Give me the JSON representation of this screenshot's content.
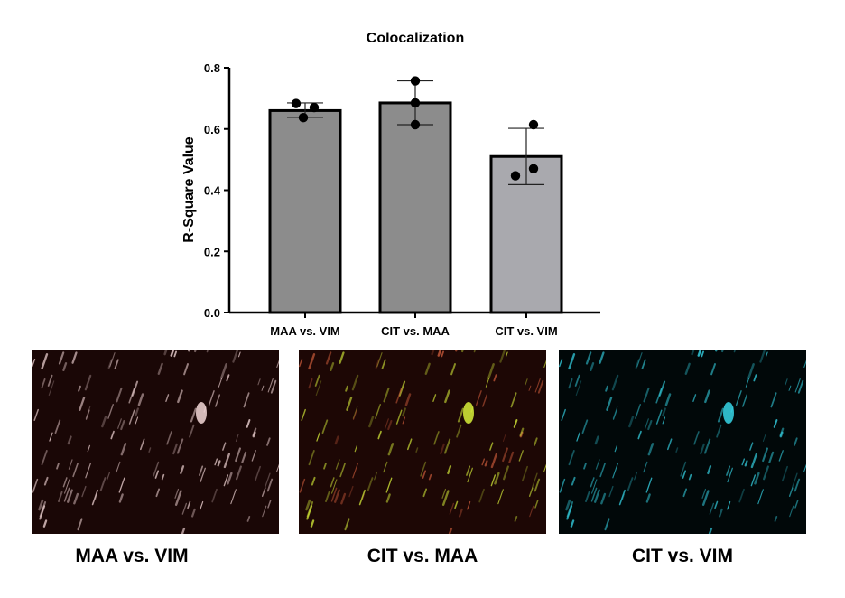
{
  "chart_data": {
    "type": "bar",
    "title": "Colocalization",
    "ylabel": "R-Square Value",
    "xlabel": "",
    "ylim": [
      0,
      0.8
    ],
    "yticks": [
      "0.0",
      "0.2",
      "0.4",
      "0.6",
      "0.8"
    ],
    "grid": false,
    "categories": [
      "MAA vs. VIM",
      "CIT vs. MAA",
      "CIT vs. VIM"
    ],
    "values": [
      0.66,
      0.685,
      0.51
    ],
    "error_bars": [
      {
        "lower": 0.638,
        "upper": 0.685
      },
      {
        "lower": 0.614,
        "upper": 0.757
      },
      {
        "lower": 0.418,
        "upper": 0.602
      }
    ],
    "points": [
      [
        0.683,
        0.67,
        0.637
      ],
      [
        0.757,
        0.685,
        0.614
      ],
      [
        0.614,
        0.447,
        0.47
      ]
    ],
    "colors": {
      "bars": [
        "#8c8c8c",
        "#8c8c8c",
        "#a9a9ae"
      ],
      "edge": "#000000",
      "points": "#000000"
    }
  },
  "image_panels": [
    {
      "label": "MAA vs. VIM",
      "tone": "#f4d8d8"
    },
    {
      "label": "CIT vs. MAA",
      "tone": "#d8f03a"
    },
    {
      "label": "CIT vs. VIM",
      "tone": "#36d6e8"
    }
  ]
}
